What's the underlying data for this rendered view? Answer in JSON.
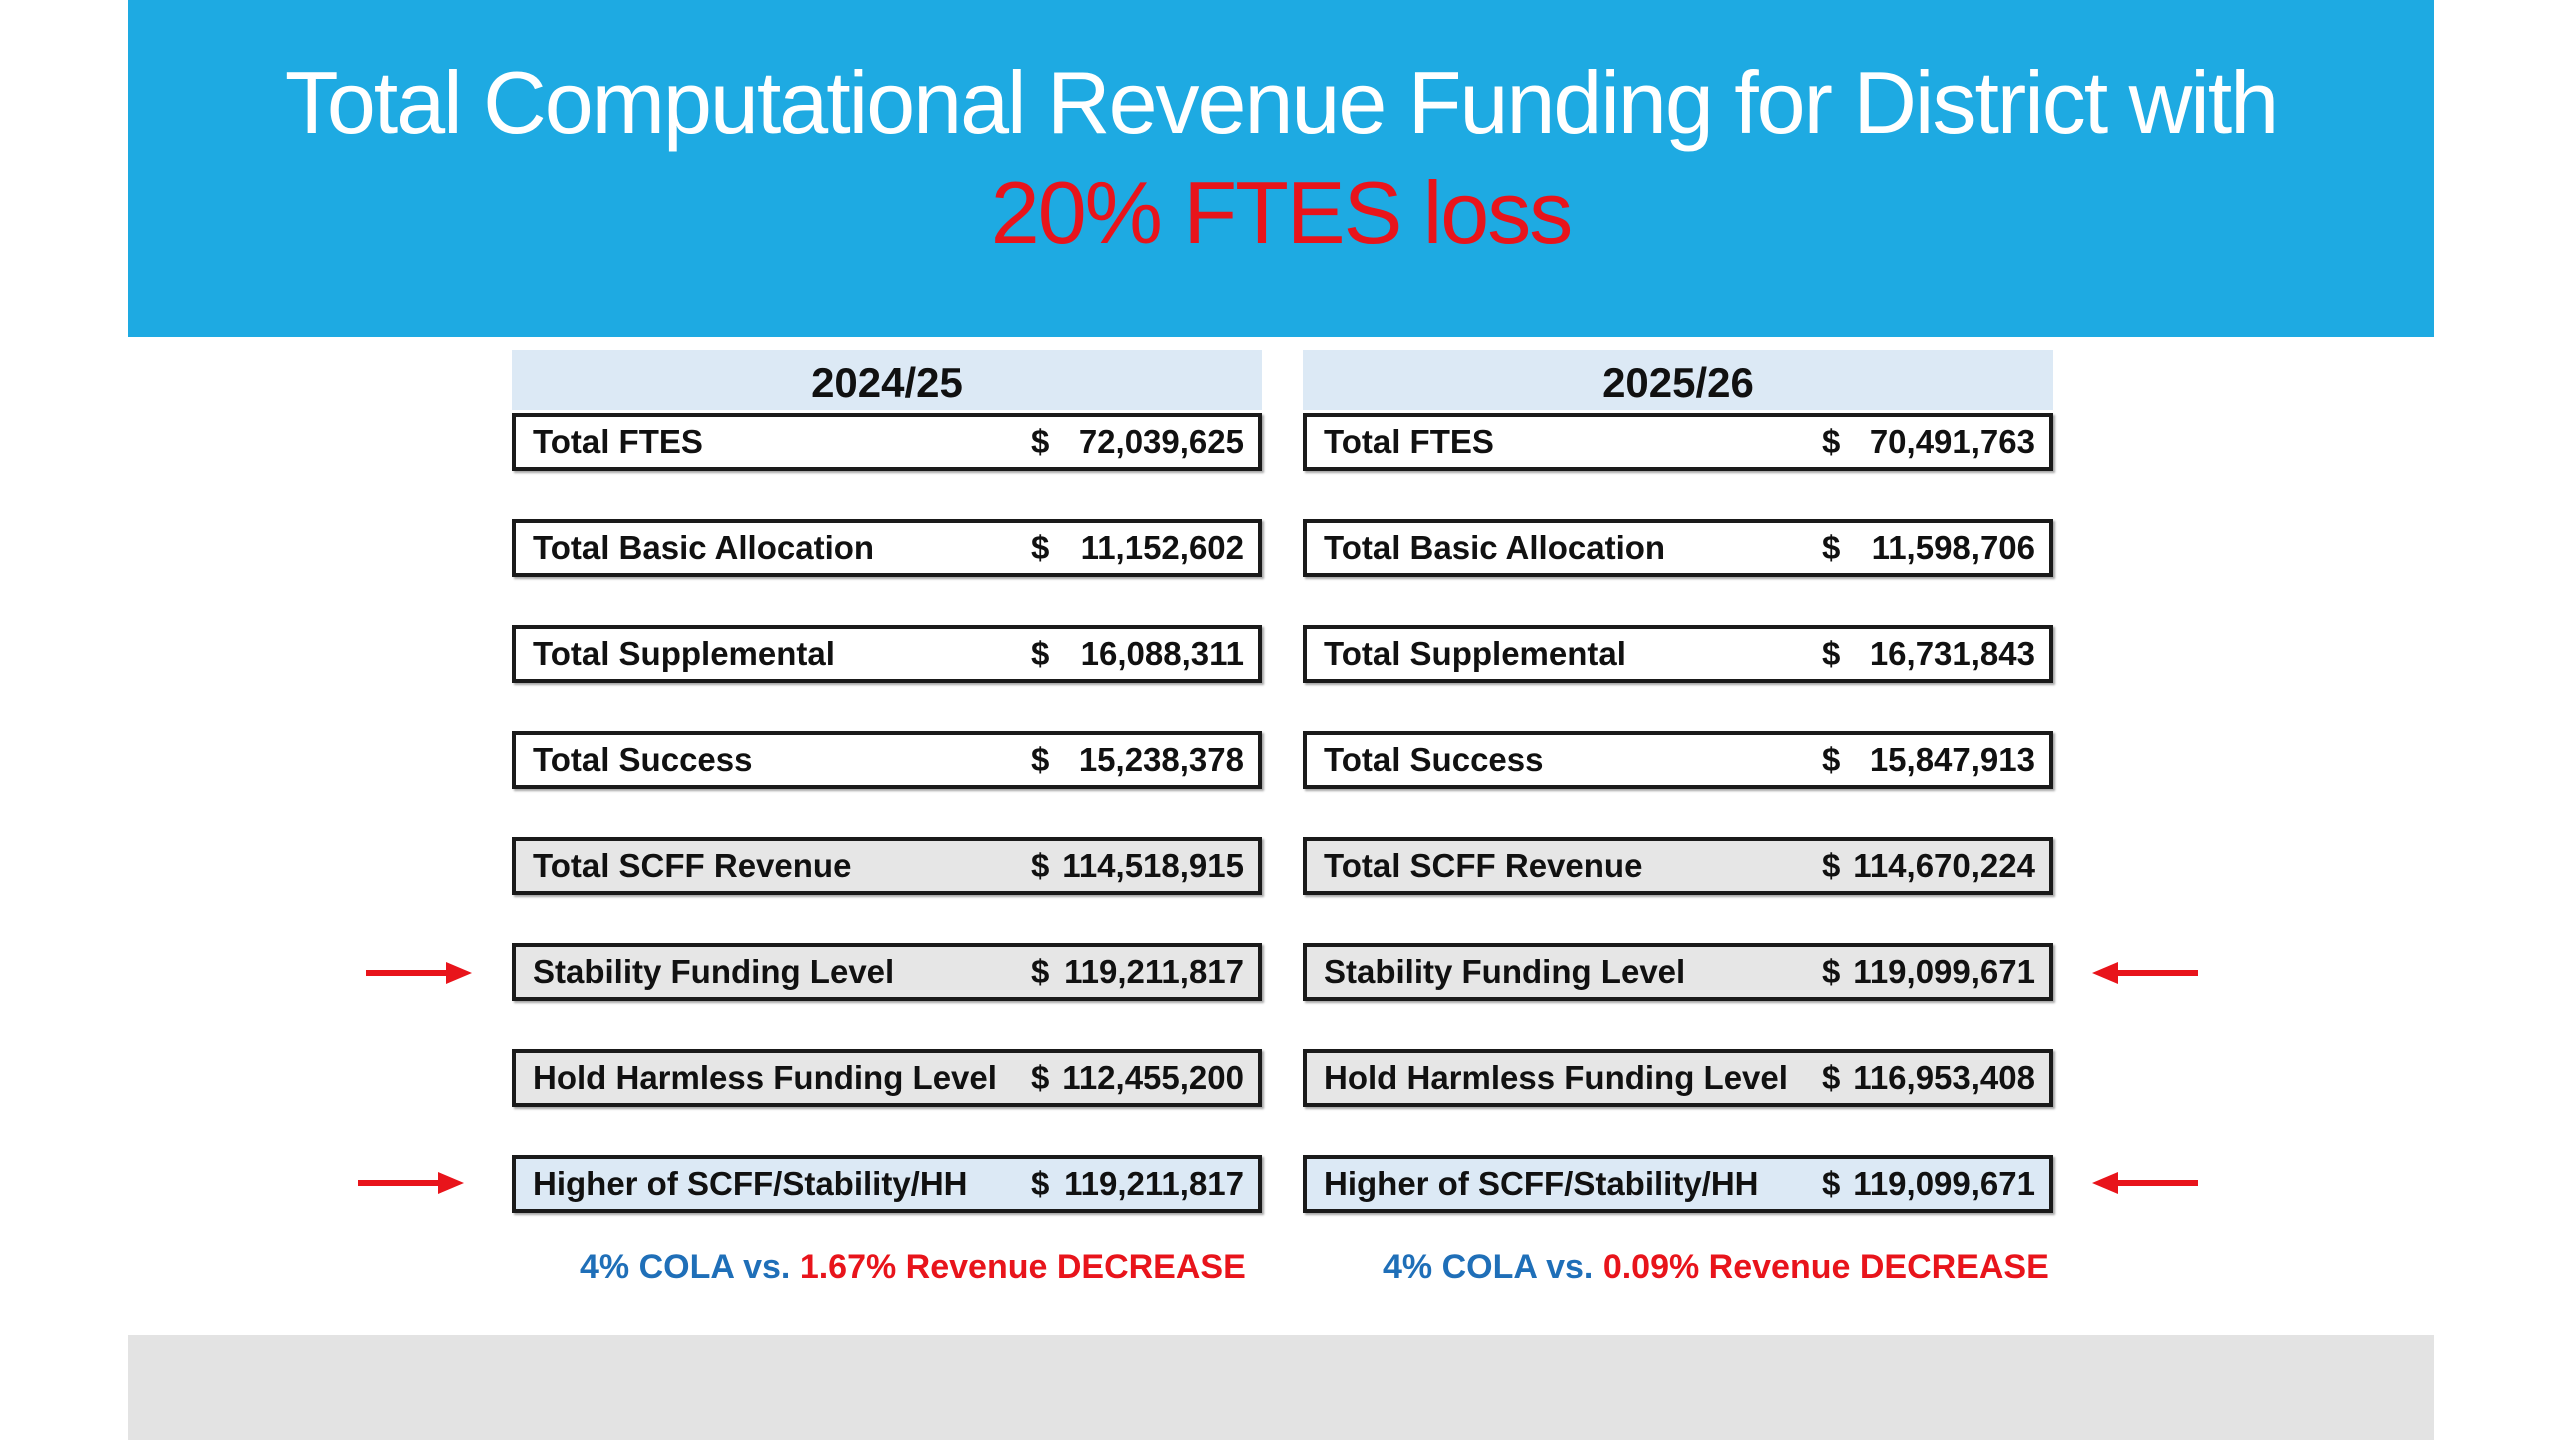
{
  "title": {
    "line1": "Total Computational Revenue Funding for District with",
    "line2": "20% FTES loss"
  },
  "columns": [
    {
      "year": "2024/25",
      "currency": "$",
      "rows": [
        {
          "label": "Total FTES",
          "value": "72,039,625"
        },
        {
          "label": "Total Basic Allocation",
          "value": "11,152,602"
        },
        {
          "label": "Total Supplemental",
          "value": "16,088,311"
        },
        {
          "label": "Total Success",
          "value": "15,238,378"
        },
        {
          "label": "Total SCFF Revenue",
          "value": "114,518,915"
        },
        {
          "label": "Stability Funding Level",
          "value": "119,211,817"
        },
        {
          "label": "Hold Harmless Funding Level",
          "value": "112,455,200"
        },
        {
          "label": "Higher of SCFF/Stability/HH",
          "value": "119,211,817"
        }
      ],
      "note": {
        "cola": "4% COLA vs.",
        "change": "1.67% Revenue DECREASE"
      }
    },
    {
      "year": "2025/26",
      "currency": "$",
      "rows": [
        {
          "label": "Total FTES",
          "value": "70,491,763"
        },
        {
          "label": "Total Basic Allocation",
          "value": "11,598,706"
        },
        {
          "label": "Total Supplemental",
          "value": "16,731,843"
        },
        {
          "label": "Total Success",
          "value": "15,847,913"
        },
        {
          "label": "Total SCFF Revenue",
          "value": "114,670,224"
        },
        {
          "label": "Stability Funding Level",
          "value": "119,099,671"
        },
        {
          "label": "Hold Harmless Funding Level",
          "value": "116,953,408"
        },
        {
          "label": "Higher of SCFF/Stability/HH",
          "value": "119,099,671"
        }
      ],
      "note": {
        "cola": "4% COLA vs.",
        "change": "0.09% Revenue DECREASE"
      }
    }
  ],
  "colors": {
    "banner": "#1eaae2",
    "title_text": "#ffffff",
    "highlight_red": "#e8141b",
    "note_blue": "#1f6fb8",
    "header_fill": "#dce9f5",
    "grey_fill": "#e6e6e6",
    "footer": "#e3e3e3"
  },
  "icons": [
    "arrow-right-icon",
    "arrow-left-icon"
  ]
}
